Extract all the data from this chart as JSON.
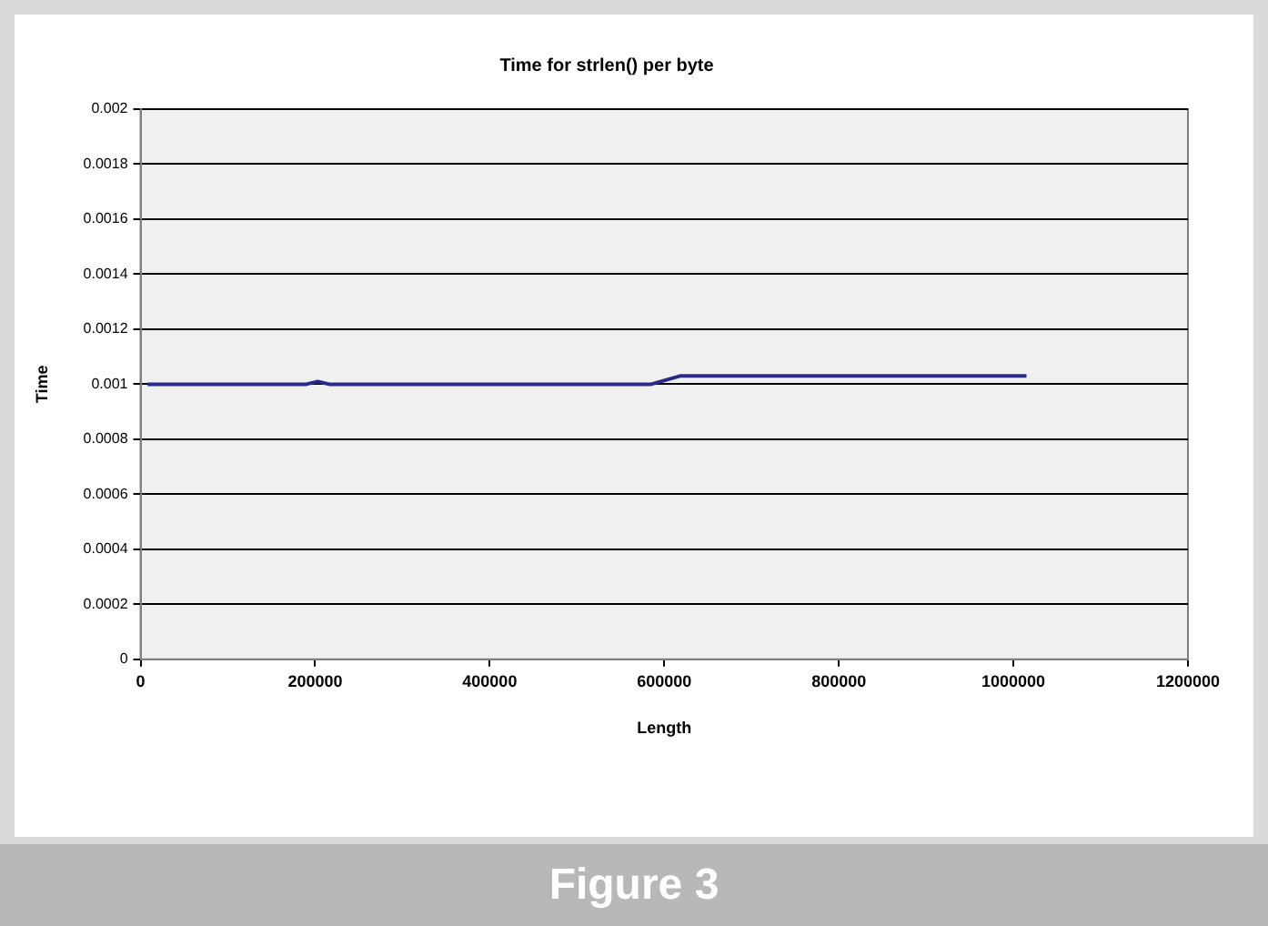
{
  "chart_data": {
    "type": "line",
    "title": "Time for strlen() per byte",
    "xlabel": "Length",
    "ylabel": "Time",
    "x": [
      8000,
      190000,
      203000,
      216000,
      585000,
      618000,
      1015000
    ],
    "series": [
      {
        "color": "#2a2a8c",
        "values": [
          0.001,
          0.001,
          0.00101,
          0.001,
          0.001,
          0.00103,
          0.00103
        ]
      }
    ],
    "xlim": [
      0,
      1200000
    ],
    "xticks": [
      0,
      200000,
      400000,
      600000,
      800000,
      1000000,
      1200000
    ],
    "ylim": [
      0,
      0.002
    ],
    "yticks": [
      0,
      0.0002,
      0.0004,
      0.0006,
      0.0008,
      0.001,
      0.0012,
      0.0014,
      0.0016,
      0.0018,
      0.002
    ],
    "grid": "y",
    "legend": false,
    "marker": "none",
    "line_style": "solid",
    "annotations": [
      "Figure 3"
    ]
  }
}
